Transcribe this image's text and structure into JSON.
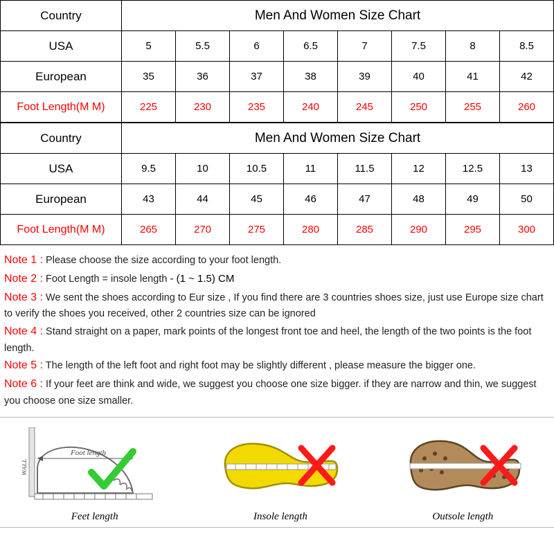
{
  "tables": [
    {
      "country_label": "Country",
      "chart_title": "Men And Women Size Chart",
      "rows": [
        {
          "label": "USA",
          "red": false,
          "cells": [
            "5",
            "5.5",
            "6",
            "6.5",
            "7",
            "7.5",
            "8",
            "8.5"
          ]
        },
        {
          "label": "European",
          "red": false,
          "cells": [
            "35",
            "36",
            "37",
            "38",
            "39",
            "40",
            "41",
            "42"
          ]
        },
        {
          "label": "Foot Length(M M)",
          "red": true,
          "cells": [
            "225",
            "230",
            "235",
            "240",
            "245",
            "250",
            "255",
            "260"
          ]
        }
      ]
    },
    {
      "country_label": "Country",
      "chart_title": "Men And Women Size Chart",
      "rows": [
        {
          "label": "USA",
          "red": false,
          "cells": [
            "9.5",
            "10",
            "10.5",
            "11",
            "11.5",
            "12",
            "12.5",
            "13"
          ]
        },
        {
          "label": "European",
          "red": false,
          "cells": [
            "43",
            "44",
            "45",
            "46",
            "47",
            "48",
            "49",
            "50"
          ]
        },
        {
          "label": "Foot Length(M M)",
          "red": true,
          "cells": [
            "265",
            "270",
            "275",
            "280",
            "285",
            "290",
            "295",
            "300"
          ]
        }
      ]
    }
  ],
  "notes": [
    {
      "label": "Note 1 :",
      "text": " Please choose the size according to your foot length.",
      "extra": ""
    },
    {
      "label": "Note 2 :",
      "text": " Foot Length = insole length ",
      "extra": " -  (1 ~ 1.5) CM"
    },
    {
      "label": "Note 3 :",
      "text": "   We sent the shoes according to Eur size , If you find there are 3 countries shoes size, just use Europe size chart to verify the shoes you received, other 2 countries size can be ignored",
      "extra": ""
    },
    {
      "label": "Note 4 :",
      "text": "   Stand straight on a paper, mark points of the longest front toe and heel, the length of the two points is the foot length.",
      "extra": ""
    },
    {
      "label": "Note 5 :",
      "text": " The length of the left foot and right foot may be slightly different , please measure the bigger one.",
      "extra": ""
    },
    {
      "label": "Note 6 :",
      "text": " If your feet are think and wide, we suggest you choose one size bigger. if they are narrow and thin, we suggest you choose one size smaller.",
      "extra": ""
    }
  ],
  "diagrams": [
    {
      "caption": "Feet length",
      "mark": "check"
    },
    {
      "caption": "Insole length",
      "mark": "cross"
    },
    {
      "caption": "Outsole length",
      "mark": "cross"
    }
  ],
  "colors": {
    "border": "#000000",
    "red": "#ff0000",
    "diag_border": "#b9b9b9",
    "check_green": "#33cc33",
    "cross_red": "#ff1a1a",
    "insole_fill": "#f2d900",
    "insole_stroke": "#a38f00",
    "outsole_fill": "#b38b5a",
    "outsole_stroke": "#5b4428",
    "foot_stroke": "#6e6e6e"
  }
}
